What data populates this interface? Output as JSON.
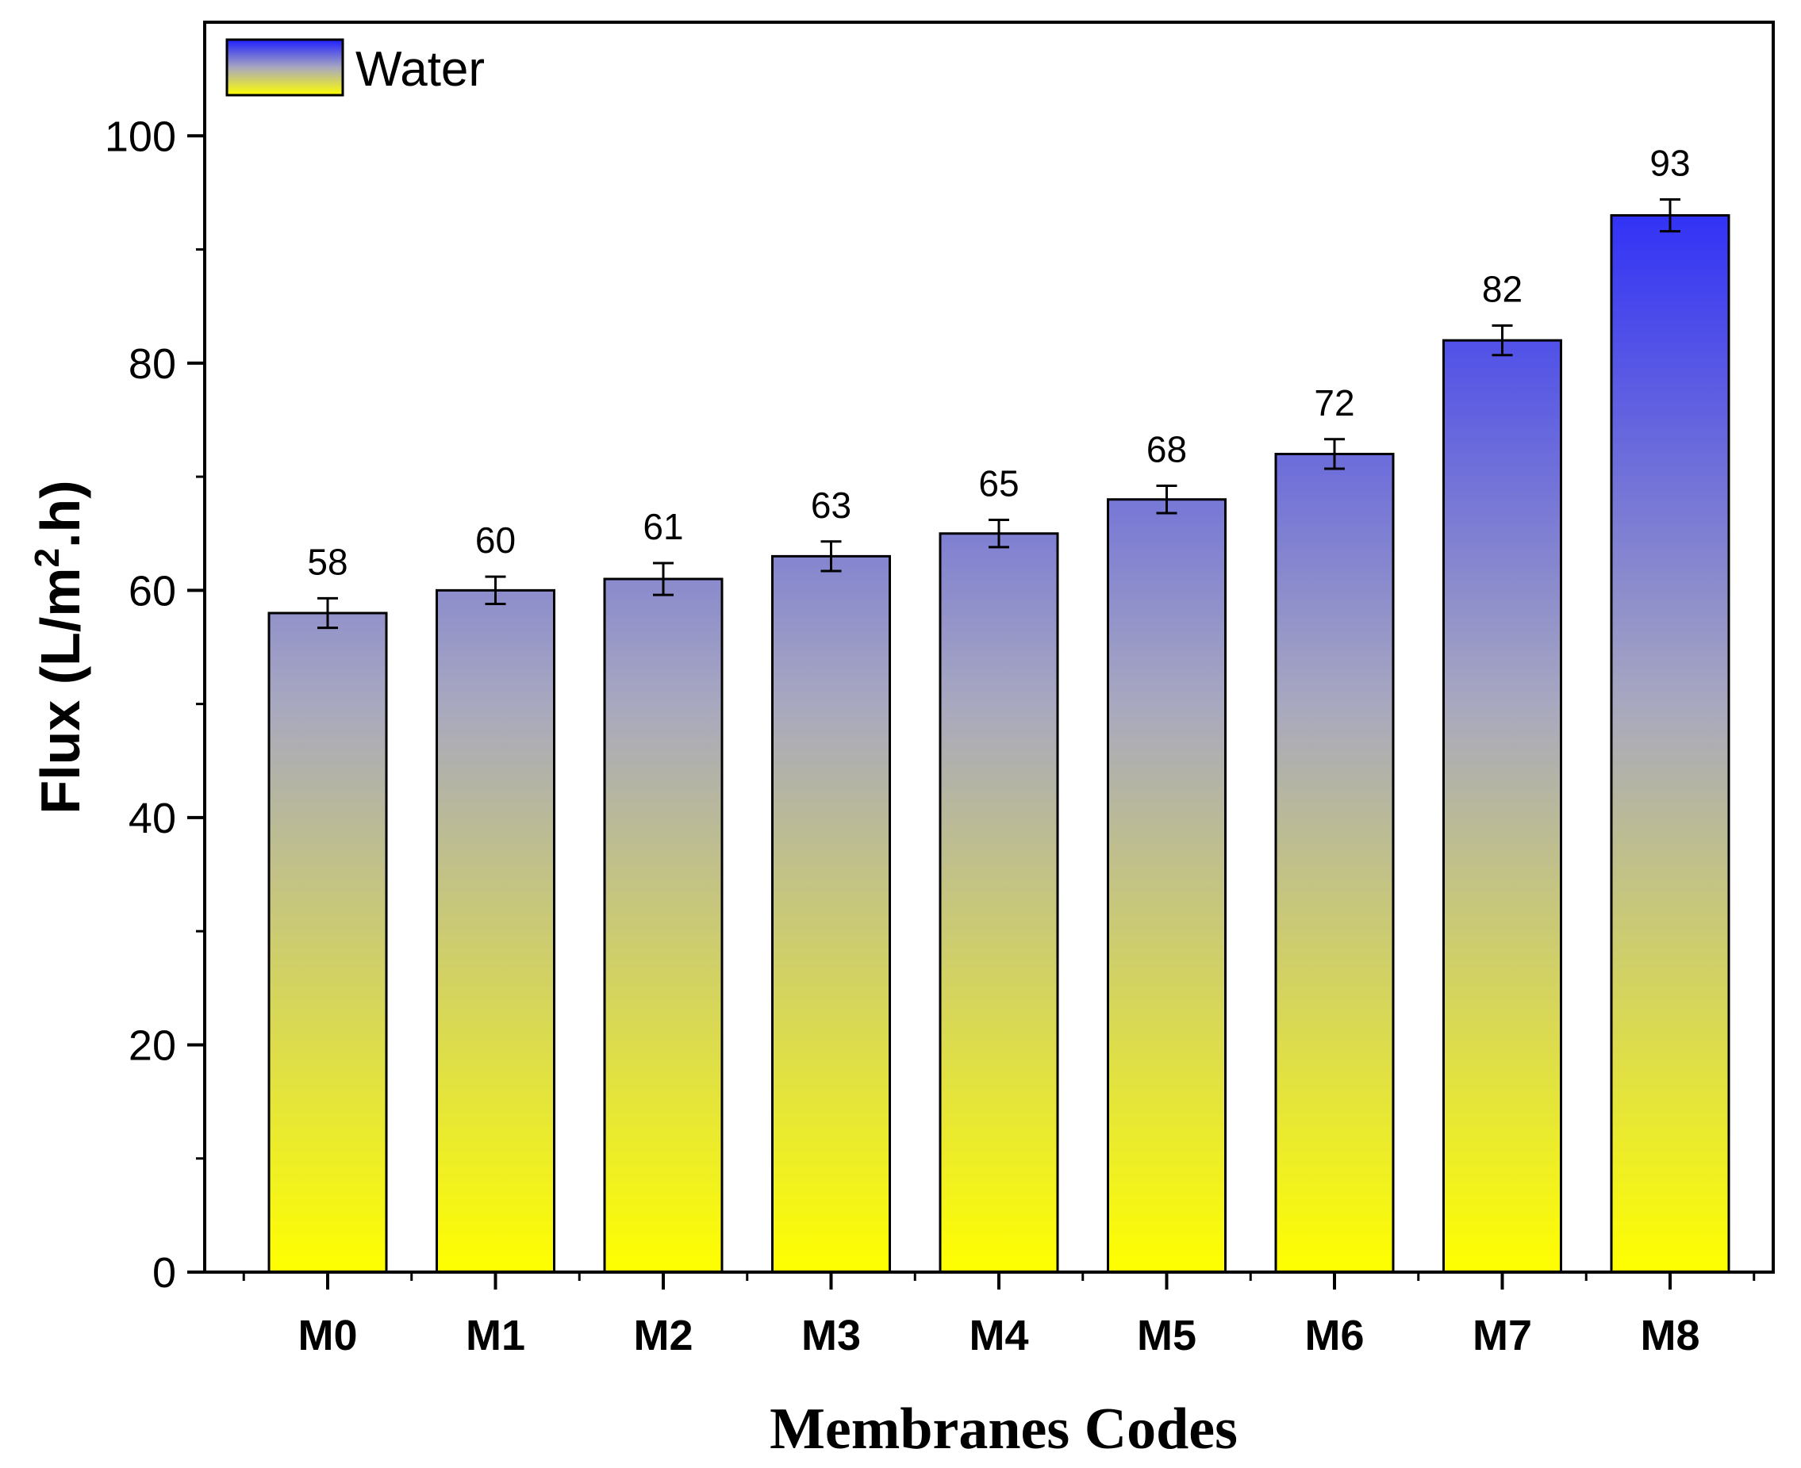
{
  "chart_data": {
    "type": "bar",
    "title": "",
    "xlabel": "Membranes Codes",
    "ylabel_prefix": "Flux (L/m",
    "ylabel_sup": "2",
    "ylabel_suffix": ".h)",
    "categories": [
      "M0",
      "M1",
      "M2",
      "M3",
      "M4",
      "M5",
      "M6",
      "M7",
      "M8"
    ],
    "series": [
      {
        "name": "Water",
        "values": [
          58,
          60,
          61,
          63,
          65,
          68,
          72,
          82,
          93
        ],
        "errors": [
          1.3,
          1.2,
          1.4,
          1.3,
          1.2,
          1.2,
          1.3,
          1.3,
          1.4
        ],
        "labels": [
          "58",
          "60",
          "61",
          "63",
          "65",
          "68",
          "72",
          "82",
          "93"
        ]
      }
    ],
    "ylim": [
      0,
      110
    ],
    "yticks": [
      0,
      20,
      40,
      60,
      80,
      100
    ],
    "yticklabels": [
      "0",
      "20",
      "40",
      "60",
      "80",
      "100"
    ],
    "grid": false,
    "legend_position": "top-left",
    "colors": {
      "gradient_top": "#1f1fff",
      "gradient_mid": "#a8a8c0",
      "gradient_bottom": "#ffff00",
      "outline": "#000000"
    }
  }
}
